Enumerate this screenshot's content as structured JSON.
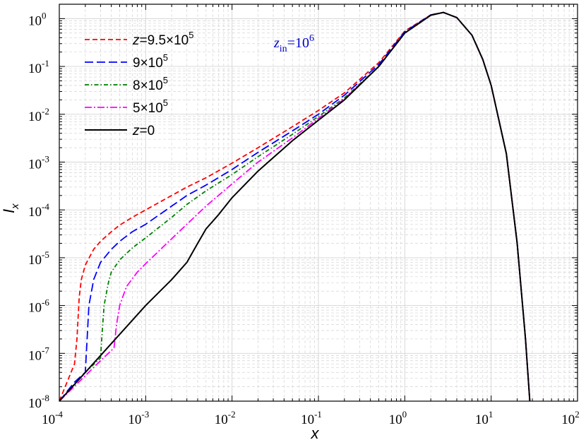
{
  "chart_data": {
    "type": "line",
    "xlabel": "x",
    "ylabel": "I",
    "ylabel_sub": "x",
    "xscale": "log",
    "yscale": "log",
    "xlim": [
      0.0001,
      100
    ],
    "ylim": [
      1e-08,
      2
    ],
    "grid": true,
    "legend_position": "top-left",
    "x_tick_labels": [
      {
        "value": 0.0001,
        "base": "10",
        "exp": "-4"
      },
      {
        "value": 0.001,
        "base": "10",
        "exp": "-3"
      },
      {
        "value": 0.01,
        "base": "10",
        "exp": "-2"
      },
      {
        "value": 0.1,
        "base": "10",
        "exp": "-1"
      },
      {
        "value": 1,
        "base": "10",
        "exp": "0"
      },
      {
        "value": 10,
        "base": "10",
        "exp": "1"
      },
      {
        "value": 100,
        "base": "10",
        "exp": "2"
      }
    ],
    "y_tick_labels": [
      {
        "value": 1e-08,
        "base": "10",
        "exp": "-8"
      },
      {
        "value": 1e-07,
        "base": "10",
        "exp": "-7"
      },
      {
        "value": 1e-06,
        "base": "10",
        "exp": "-6"
      },
      {
        "value": 1e-05,
        "base": "10",
        "exp": "-5"
      },
      {
        "value": 0.0001,
        "base": "10",
        "exp": "-4"
      },
      {
        "value": 0.001,
        "base": "10",
        "exp": "-3"
      },
      {
        "value": 0.01,
        "base": "10",
        "exp": "-2"
      },
      {
        "value": 0.1,
        "base": "10",
        "exp": "-1"
      },
      {
        "value": 1,
        "base": "10",
        "exp": "0"
      }
    ],
    "annotation": {
      "main": "z",
      "sub": "in",
      "rest": "=10",
      "sup": "6",
      "color": "#0000cc"
    },
    "series": [
      {
        "legend_parts": [
          {
            "text": "z",
            "italic": true
          },
          {
            "text": "=9.5×10"
          },
          {
            "text": "5",
            "sup": true
          }
        ],
        "color": "#ff0000",
        "dash": "7,4",
        "x": [
          0.0001,
          0.00015,
          0.00016,
          0.00017,
          0.00018,
          0.0002,
          0.00025,
          0.0003,
          0.0004,
          0.0005,
          0.0007,
          0.001,
          0.002,
          0.003,
          0.005,
          0.01,
          0.02,
          0.05,
          0.1,
          0.2,
          0.5,
          1,
          2,
          2.8,
          4,
          6,
          8,
          10,
          15,
          20,
          25,
          28
        ],
        "y": [
          1e-08,
          6e-08,
          2e-07,
          1.5e-06,
          3.5e-06,
          7e-06,
          1.5e-05,
          2.2e-05,
          3.5e-05,
          4.8e-05,
          7e-05,
          0.0001,
          0.0002,
          0.0003,
          0.00047,
          0.00095,
          0.002,
          0.0055,
          0.012,
          0.028,
          0.12,
          0.55,
          1.2,
          1.35,
          1.05,
          0.45,
          0.14,
          0.04,
          0.0015,
          2e-05,
          2e-07,
          1e-08
        ]
      },
      {
        "legend_parts": [
          {
            "text": "9×10"
          },
          {
            "text": "5",
            "sup": true
          }
        ],
        "color": "#0000ff",
        "dash": "12,5",
        "x": [
          0.0001,
          0.00015,
          0.0002,
          0.00021,
          0.00022,
          0.00025,
          0.0003,
          0.0004,
          0.0005,
          0.0007,
          0.001,
          0.002,
          0.003,
          0.005,
          0.01,
          0.02,
          0.05,
          0.1,
          0.2,
          0.5,
          1,
          2,
          2.8,
          4,
          6,
          8,
          10,
          15,
          20,
          25,
          28
        ],
        "y": [
          1e-08,
          2.5e-08,
          4e-08,
          2e-07,
          1e-06,
          3.5e-06,
          8e-06,
          1.5e-05,
          2.2e-05,
          3.5e-05,
          5e-05,
          0.00012,
          0.0002,
          0.00033,
          0.0007,
          0.0016,
          0.0045,
          0.01,
          0.025,
          0.11,
          0.53,
          1.2,
          1.35,
          1.05,
          0.45,
          0.14,
          0.04,
          0.0015,
          2e-05,
          2e-07,
          1e-08
        ]
      },
      {
        "legend_parts": [
          {
            "text": "8×10"
          },
          {
            "text": "5",
            "sup": true
          }
        ],
        "color": "#008000",
        "dash": "6,3,1.5,3",
        "x": [
          0.0001,
          0.0002,
          0.0003,
          0.00031,
          0.00033,
          0.00037,
          0.0004,
          0.0005,
          0.0007,
          0.001,
          0.002,
          0.003,
          0.005,
          0.01,
          0.02,
          0.05,
          0.1,
          0.2,
          0.5,
          1,
          2,
          2.8,
          4,
          6,
          8,
          10,
          15,
          20,
          25,
          28
        ],
        "y": [
          1e-08,
          4e-08,
          8e-08,
          2e-07,
          1e-06,
          3e-06,
          5e-06,
          9e-06,
          1.6e-05,
          2.6e-05,
          7e-05,
          0.00013,
          0.00025,
          0.00055,
          0.0013,
          0.0038,
          0.009,
          0.022,
          0.1,
          0.5,
          1.18,
          1.35,
          1.05,
          0.45,
          0.14,
          0.04,
          0.0015,
          2e-05,
          2e-07,
          1e-08
        ]
      },
      {
        "legend_parts": [
          {
            "text": "5×10"
          },
          {
            "text": "5",
            "sup": true
          }
        ],
        "color": "#ff00ff",
        "dash": "10,3,2,3",
        "x": [
          0.0001,
          0.0003,
          0.00043,
          0.00046,
          0.0005,
          0.0006,
          0.0008,
          0.001,
          0.002,
          0.003,
          0.005,
          0.01,
          0.02,
          0.05,
          0.1,
          0.2,
          0.5,
          1,
          2,
          2.8,
          4,
          6,
          8,
          10,
          15,
          20,
          25,
          28
        ],
        "y": [
          1e-08,
          7e-08,
          1.3e-07,
          4e-07,
          1e-06,
          2.5e-06,
          5e-06,
          7.5e-06,
          2.5e-05,
          5e-05,
          0.00012,
          0.00035,
          0.001,
          0.0032,
          0.0082,
          0.021,
          0.1,
          0.5,
          1.18,
          1.35,
          1.05,
          0.45,
          0.14,
          0.04,
          0.0015,
          2e-05,
          2e-07,
          1e-08
        ]
      },
      {
        "legend_parts": [
          {
            "text": "z",
            "italic": true
          },
          {
            "text": "=0"
          }
        ],
        "color": "#000000",
        "dash": "",
        "x": [
          0.0001,
          0.0003,
          0.001,
          0.002,
          0.003,
          0.004,
          0.005,
          0.007,
          0.01,
          0.02,
          0.05,
          0.1,
          0.2,
          0.5,
          1,
          2,
          2.8,
          4,
          6,
          8,
          10,
          15,
          20,
          25,
          28
        ],
        "y": [
          1e-08,
          9e-08,
          1e-06,
          3.5e-06,
          8e-06,
          2e-05,
          4e-05,
          8e-05,
          0.00018,
          0.00065,
          0.0028,
          0.0075,
          0.02,
          0.1,
          0.5,
          1.18,
          1.35,
          1.05,
          0.45,
          0.14,
          0.04,
          0.0015,
          2e-05,
          2e-07,
          1e-08
        ]
      }
    ]
  }
}
